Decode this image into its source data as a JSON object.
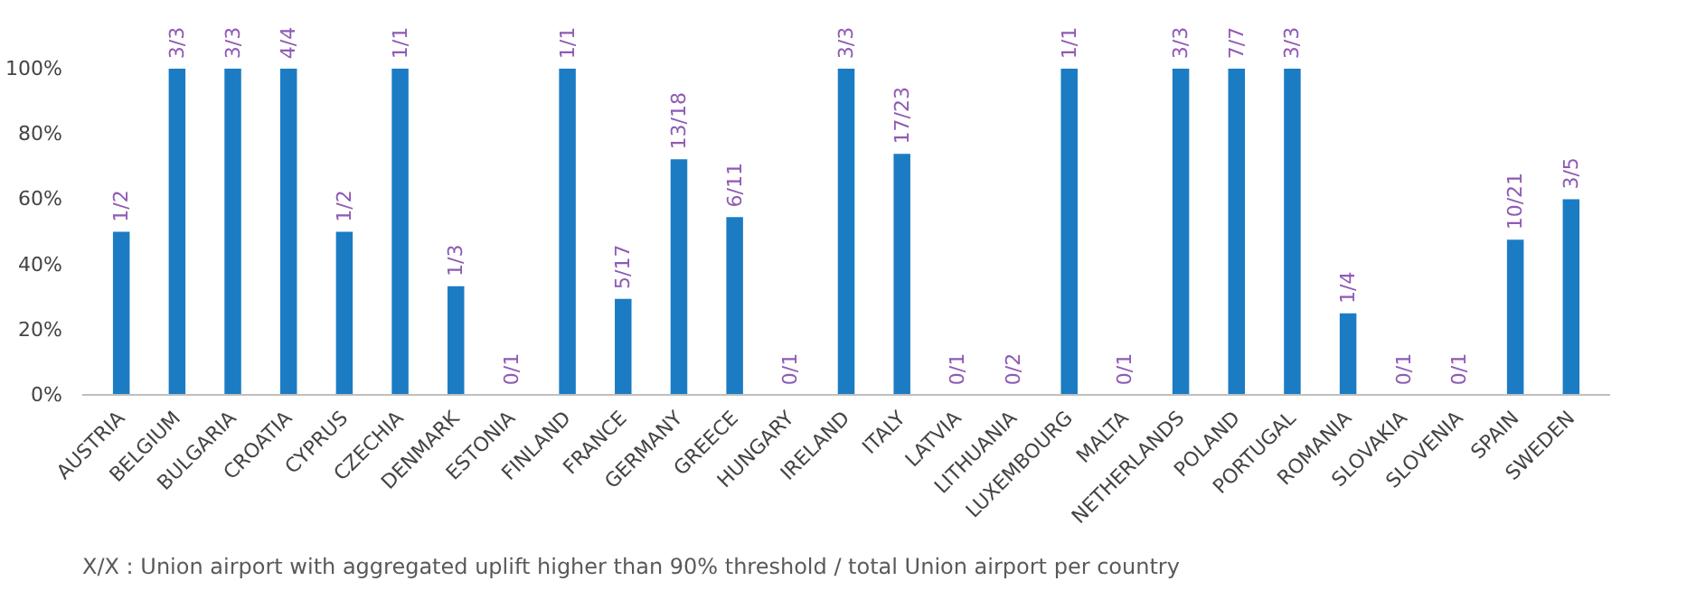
{
  "chart_data": {
    "type": "bar",
    "categories": [
      "AUSTRIA",
      "BELGIUM",
      "BULGARIA",
      "CROATIA",
      "CYPRUS",
      "CZECHIA",
      "DENMARK",
      "ESTONIA",
      "FINLAND",
      "FRANCE",
      "GERMANY",
      "GREECE",
      "HUNGARY",
      "IRELAND",
      "ITALY",
      "LATVIA",
      "LITHUANIA",
      "LUXEMBOURG",
      "MALTA",
      "NETHERLANDS",
      "POLAND",
      "PORTUGAL",
      "ROMANIA",
      "SLOVAKIA",
      "SLOVENIA",
      "SPAIN",
      "SWEDEN"
    ],
    "values": [
      50,
      100,
      100,
      100,
      50,
      100,
      33.3,
      0,
      100,
      29.4,
      72.2,
      54.5,
      0,
      100,
      73.9,
      0,
      0,
      100,
      0,
      100,
      100,
      100,
      25,
      0,
      0,
      47.6,
      60
    ],
    "annotations": [
      {
        "text": "1/2",
        "x": "AUSTRIA",
        "y": 50
      },
      {
        "text": "3/3",
        "x": "BELGIUM",
        "y": 100
      },
      {
        "text": "3/3",
        "x": "BULGARIA",
        "y": 100
      },
      {
        "text": "4/4",
        "x": "CROATIA",
        "y": 100
      },
      {
        "text": "1/2",
        "x": "CYPRUS",
        "y": 50
      },
      {
        "text": "1/1",
        "x": "CZECHIA",
        "y": 100
      },
      {
        "text": "1/3",
        "x": "DENMARK",
        "y": 33.3
      },
      {
        "text": "0/1",
        "x": "ESTONIA",
        "y": 0
      },
      {
        "text": "1/1",
        "x": "FINLAND",
        "y": 100
      },
      {
        "text": "5/17",
        "x": "FRANCE",
        "y": 29.4
      },
      {
        "text": "13/18",
        "x": "GERMANY",
        "y": 72.2
      },
      {
        "text": "6/11",
        "x": "GREECE",
        "y": 54.5
      },
      {
        "text": "0/1",
        "x": "HUNGARY",
        "y": 0
      },
      {
        "text": "3/3",
        "x": "IRELAND",
        "y": 100
      },
      {
        "text": "17/23",
        "x": "ITALY",
        "y": 73.9
      },
      {
        "text": "0/1",
        "x": "LATVIA",
        "y": 0
      },
      {
        "text": "0/2",
        "x": "LITHUANIA",
        "y": 0
      },
      {
        "text": "1/1",
        "x": "LUXEMBOURG",
        "y": 100
      },
      {
        "text": "0/1",
        "x": "MALTA",
        "y": 0
      },
      {
        "text": "3/3",
        "x": "NETHERLANDS",
        "y": 100
      },
      {
        "text": "7/7",
        "x": "POLAND",
        "y": 100
      },
      {
        "text": "3/3",
        "x": "PORTUGAL",
        "y": 100
      },
      {
        "text": "1/4",
        "x": "ROMANIA",
        "y": 25
      },
      {
        "text": "0/1",
        "x": "SLOVAKIA",
        "y": 0
      },
      {
        "text": "0/1",
        "x": "SLOVENIA",
        "y": 0
      },
      {
        "text": "10/21",
        "x": "SPAIN",
        "y": 47.6
      },
      {
        "text": "3/5",
        "x": "SWEDEN",
        "y": 60
      },
      "X/X : Union airport with aggregated uplift higher than 90% threshold / total Union airport per country"
    ],
    "color": "#1b7cc4",
    "ylim": [
      0,
      100
    ],
    "yticks": [
      {
        "value": 0,
        "label": "0%"
      },
      {
        "value": 20,
        "label": "20%"
      },
      {
        "value": 40,
        "label": "40%"
      },
      {
        "value": 60,
        "label": "60%"
      },
      {
        "value": 80,
        "label": "80%"
      },
      {
        "value": 100,
        "label": "100%"
      }
    ],
    "grid": false
  }
}
